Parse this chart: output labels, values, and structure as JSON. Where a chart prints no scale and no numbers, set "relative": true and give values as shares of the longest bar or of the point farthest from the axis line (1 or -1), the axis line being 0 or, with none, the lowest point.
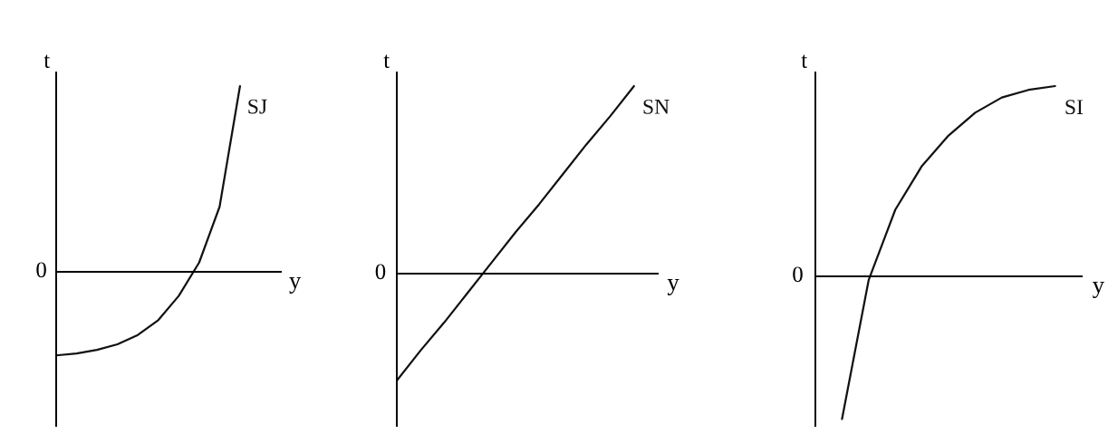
{
  "chart_data": [
    {
      "type": "line",
      "relative": true,
      "xlabel": "y",
      "ylabel": "t",
      "annotations": [
        "0"
      ],
      "categories": [
        null,
        null,
        null,
        null,
        null,
        null,
        null,
        null,
        null,
        null,
        null,
        null
      ],
      "series": [
        {
          "name": "SJ",
          "color": "#111111",
          "values": [
            -0.45,
            -0.44,
            -0.42,
            -0.39,
            -0.34,
            -0.26,
            -0.13,
            0.05,
            0.35,
            1.0,
            null,
            null
          ]
        }
      ]
    },
    {
      "type": "line",
      "relative": true,
      "xlabel": "y",
      "ylabel": "t",
      "annotations": [
        "0"
      ],
      "categories": [
        null,
        null,
        null,
        null,
        null,
        null,
        null,
        null,
        null,
        null,
        null,
        null
      ],
      "series": [
        {
          "name": "SN",
          "color": "#111111",
          "values": [
            -0.57,
            -0.41,
            -0.26,
            -0.1,
            0.06,
            0.22,
            0.37,
            0.53,
            0.69,
            0.84,
            1.0,
            null
          ]
        }
      ]
    },
    {
      "type": "line",
      "relative": true,
      "xlabel": "y",
      "ylabel": "t",
      "annotations": [
        "0"
      ],
      "categories": [
        null,
        null,
        null,
        null,
        null,
        null,
        null,
        null,
        null,
        null,
        null
      ],
      "series": [
        {
          "name": "SI",
          "color": "#111111",
          "values": [
            null,
            -0.75,
            -0.02,
            0.35,
            0.58,
            0.74,
            0.86,
            0.94,
            0.98,
            1.0,
            null
          ]
        }
      ]
    }
  ]
}
